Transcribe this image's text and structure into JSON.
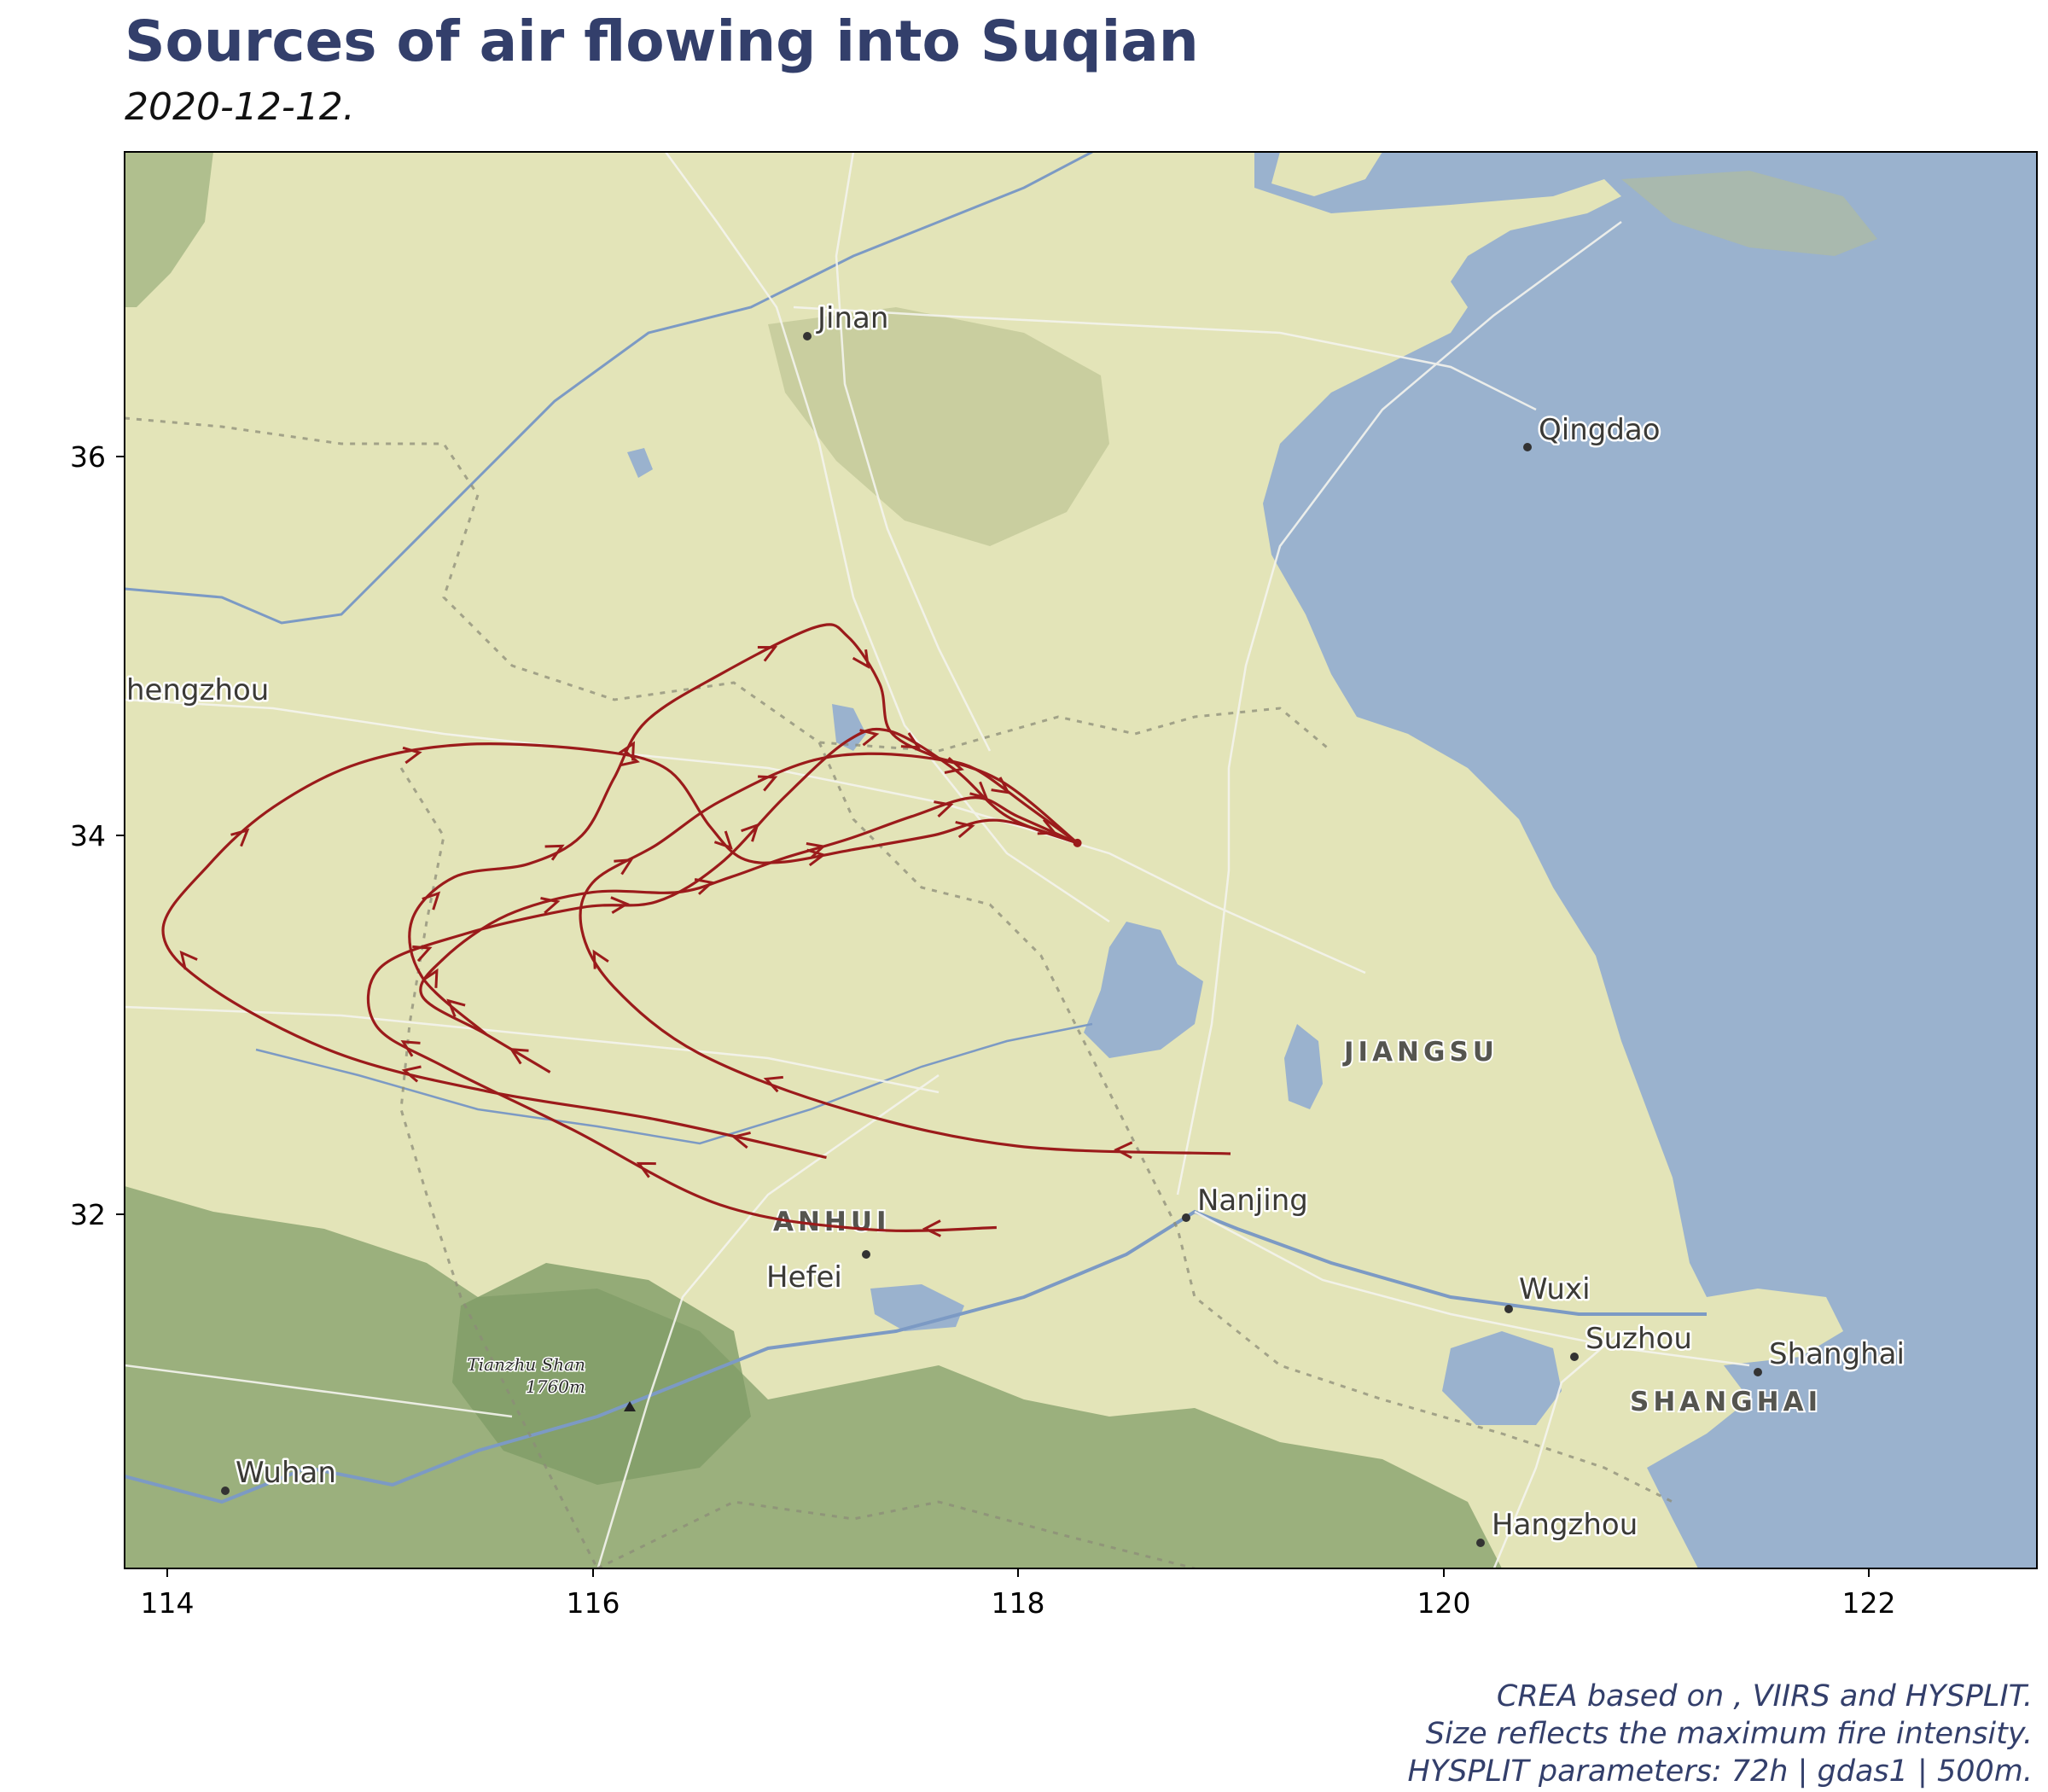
{
  "title": "Sources of air flowing into Suqian",
  "subtitle": "2020-12-12.",
  "caption": {
    "line1": "CREA based on , VIIRS and HYSPLIT.",
    "line2": "Size reflects the maximum fire intensity.",
    "line3": "HYSPLIT parameters: 72h | gdas1 | 500m."
  },
  "map": {
    "x_ticks": [
      "114",
      "116",
      "118",
      "120",
      "122"
    ],
    "y_ticks": [
      "36",
      "34",
      "32"
    ],
    "colors": {
      "land": "#e3e4b8",
      "water": "#9ab2ce",
      "forest": "#8ea772",
      "trajectory": "#9b1b1b"
    },
    "cities": [
      {
        "key": "jinan",
        "name": "Jinan"
      },
      {
        "key": "qingdao",
        "name": "Qingdao"
      },
      {
        "key": "zhengzhou",
        "name": "hengzhou"
      },
      {
        "key": "nanjing",
        "name": "Nanjing"
      },
      {
        "key": "hefei",
        "name": "Hefei"
      },
      {
        "key": "wuxi",
        "name": "Wuxi"
      },
      {
        "key": "suzhou",
        "name": "Suzhou"
      },
      {
        "key": "shanghai",
        "name": "Shanghai"
      },
      {
        "key": "hangzhou",
        "name": "Hangzhou"
      },
      {
        "key": "wuhan",
        "name": "Wuhan"
      }
    ],
    "provinces": [
      {
        "key": "jiangsu",
        "name": "JIANGSU"
      },
      {
        "key": "anhui",
        "name": "ANHUI"
      },
      {
        "key": "shanghai",
        "name": "SHANGHAI"
      }
    ],
    "peak": {
      "name": "Tianzhu Shan",
      "elevation": "1760m"
    },
    "receptor": {
      "name": "Suqian",
      "lon": 118.28,
      "lat": 33.96
    },
    "trajectories": [
      {
        "id": "t1",
        "points": [
          [
            118.28,
            33.96
          ],
          [
            117.9,
            34.08
          ],
          [
            117.6,
            34.0
          ],
          [
            117.2,
            33.92
          ],
          [
            116.9,
            33.86
          ],
          [
            116.7,
            33.88
          ],
          [
            116.55,
            34.05
          ],
          [
            116.35,
            34.35
          ],
          [
            116.0,
            34.45
          ],
          [
            115.4,
            34.48
          ],
          [
            114.9,
            34.38
          ],
          [
            114.5,
            34.15
          ],
          [
            114.2,
            33.85
          ],
          [
            113.98,
            33.5
          ],
          [
            114.2,
            33.2
          ],
          [
            114.8,
            32.85
          ],
          [
            115.5,
            32.65
          ],
          [
            116.3,
            32.5
          ],
          [
            117.1,
            32.3
          ]
        ]
      },
      {
        "id": "t2",
        "points": [
          [
            118.28,
            33.96
          ],
          [
            118.0,
            34.1
          ],
          [
            117.8,
            34.2
          ],
          [
            117.5,
            34.1
          ],
          [
            117.2,
            33.98
          ],
          [
            116.9,
            33.88
          ],
          [
            116.65,
            33.78
          ],
          [
            116.4,
            33.7
          ],
          [
            116.0,
            33.7
          ],
          [
            115.6,
            33.58
          ],
          [
            115.3,
            33.35
          ],
          [
            115.2,
            33.15
          ],
          [
            115.5,
            32.95
          ],
          [
            115.8,
            32.75
          ]
        ]
      },
      {
        "id": "t3",
        "points": [
          [
            118.28,
            33.96
          ],
          [
            117.95,
            34.1
          ],
          [
            117.7,
            34.35
          ],
          [
            117.4,
            34.55
          ],
          [
            117.2,
            34.5
          ],
          [
            116.9,
            34.2
          ],
          [
            116.6,
            33.85
          ],
          [
            116.3,
            33.65
          ],
          [
            115.95,
            33.62
          ],
          [
            115.4,
            33.48
          ],
          [
            115.0,
            33.3
          ],
          [
            114.98,
            33.0
          ],
          [
            115.3,
            32.78
          ],
          [
            115.9,
            32.45
          ],
          [
            116.6,
            32.05
          ],
          [
            117.3,
            31.92
          ],
          [
            117.9,
            31.93
          ]
        ]
      },
      {
        "id": "t4",
        "points": [
          [
            118.28,
            33.96
          ],
          [
            117.9,
            34.3
          ],
          [
            117.5,
            34.42
          ],
          [
            117.05,
            34.4
          ],
          [
            116.6,
            34.18
          ],
          [
            116.3,
            33.95
          ],
          [
            116.0,
            33.75
          ],
          [
            115.95,
            33.5
          ],
          [
            116.1,
            33.2
          ],
          [
            116.5,
            32.85
          ],
          [
            117.2,
            32.55
          ],
          [
            118.0,
            32.36
          ],
          [
            119.0,
            32.32
          ]
        ]
      },
      {
        "id": "t5",
        "points": [
          [
            118.28,
            33.96
          ],
          [
            118.05,
            34.15
          ],
          [
            117.8,
            34.35
          ],
          [
            117.6,
            34.42
          ],
          [
            117.4,
            34.55
          ],
          [
            117.35,
            34.8
          ],
          [
            117.2,
            35.05
          ],
          [
            117.05,
            35.1
          ],
          [
            116.6,
            34.85
          ],
          [
            116.25,
            34.6
          ],
          [
            116.1,
            34.3
          ],
          [
            115.95,
            34.0
          ],
          [
            115.7,
            33.85
          ],
          [
            115.35,
            33.78
          ],
          [
            115.15,
            33.55
          ],
          [
            115.2,
            33.25
          ],
          [
            115.5,
            32.95
          ]
        ]
      }
    ]
  }
}
